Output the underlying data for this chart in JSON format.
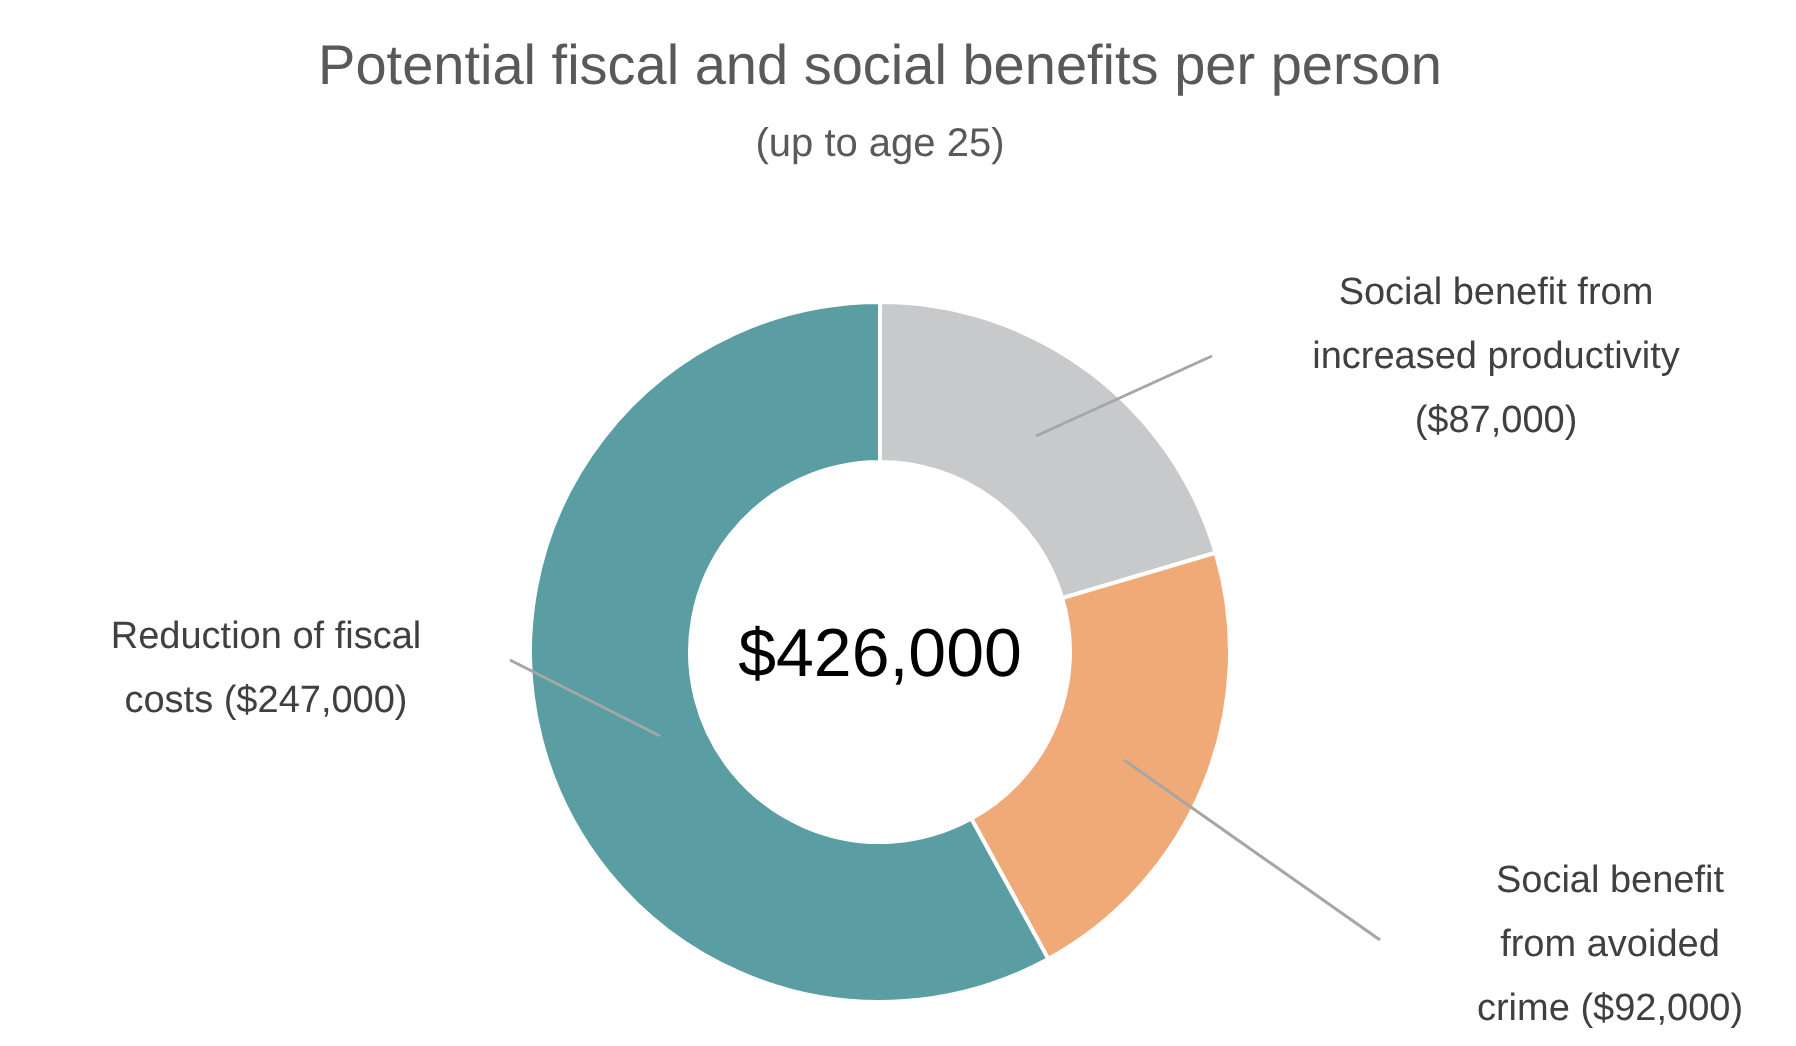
{
  "chart_data": {
    "type": "donut",
    "title": "Potential fiscal and social benefits per person",
    "subtitle": "(up to age 25)",
    "categories": [
      "Social benefit from increased productivity",
      "Social benefit from avoided crime",
      "Reduction of fiscal costs"
    ],
    "values": [
      87000,
      92000,
      247000
    ],
    "colors": [
      "#c8c9ca",
      "#f0aa78",
      "#5a9ea3"
    ],
    "value_labels": [
      "($87,000)",
      "($92,000)",
      "($247,000)"
    ],
    "annotations": [
      "$426,000"
    ]
  }
}
